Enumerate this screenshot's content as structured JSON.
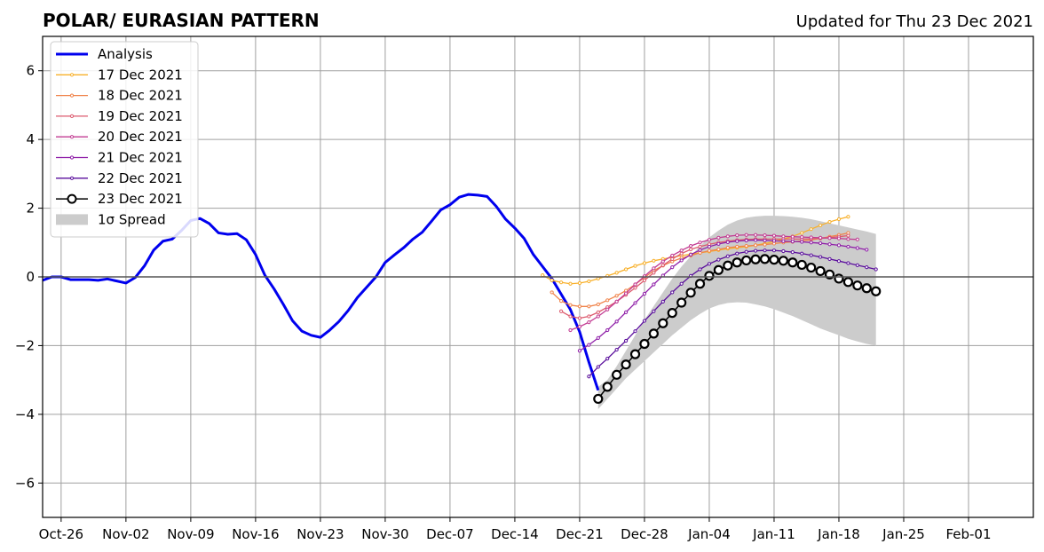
{
  "chart_data": {
    "type": "line",
    "title": "POLAR/ EURASIAN  PATTERN",
    "subtitle": "Updated for Thu 23 Dec 2021",
    "xlabel": "",
    "ylabel": "",
    "ylim": [
      -7,
      7
    ],
    "yticks": [
      -6,
      -4,
      -2,
      0,
      2,
      4,
      6
    ],
    "ytick_labels": [
      "−6",
      "−4",
      "−2",
      "0",
      "2",
      "4",
      "6"
    ],
    "xlim": [
      "2021-10-24",
      "2022-02-08"
    ],
    "xticks": [
      "2021-10-26",
      "2021-11-02",
      "2021-11-09",
      "2021-11-16",
      "2021-11-23",
      "2021-11-30",
      "2021-12-07",
      "2021-12-14",
      "2021-12-21",
      "2021-12-28",
      "2022-01-04",
      "2022-01-11",
      "2022-01-18",
      "2022-01-25",
      "2022-02-01"
    ],
    "xtick_labels": [
      "Oct-26",
      "Nov-02",
      "Nov-09",
      "Nov-16",
      "Nov-23",
      "Nov-30",
      "Dec-07",
      "Dec-14",
      "Dec-21",
      "Dec-28",
      "Jan-04",
      "Jan-11",
      "Jan-18",
      "Jan-25",
      "Feb-01"
    ],
    "grid": true,
    "legend_position": "top-left",
    "analysis": {
      "name": "Analysis",
      "color": "#0000ee",
      "start": "2021-10-24",
      "values": [
        -0.1,
        0.0,
        0.0,
        -0.08,
        -0.08,
        -0.08,
        -0.1,
        -0.06,
        -0.12,
        -0.18,
        -0.02,
        0.32,
        0.78,
        1.04,
        1.1,
        1.35,
        1.64,
        1.7,
        1.55,
        1.28,
        1.24,
        1.26,
        1.08,
        0.65,
        0.05,
        -0.35,
        -0.8,
        -1.28,
        -1.58,
        -1.7,
        -1.76,
        -1.55,
        -1.3,
        -0.98,
        -0.6,
        -0.3,
        0.0,
        0.42,
        0.64,
        0.85,
        1.1,
        1.3,
        1.62,
        1.95,
        2.1,
        2.32,
        2.4,
        2.38,
        2.34,
        2.05,
        1.68,
        1.42,
        1.12,
        0.65,
        0.3,
        -0.05,
        -0.5,
        -0.95,
        -1.6,
        -2.48,
        -3.3
      ]
    },
    "forecasts": [
      {
        "name": "17 Dec 2021",
        "color": "#f8b02a",
        "start": "2021-12-17",
        "values": [
          0.05,
          -0.1,
          -0.16,
          -0.2,
          -0.18,
          -0.13,
          -0.05,
          0.03,
          0.12,
          0.22,
          0.32,
          0.4,
          0.47,
          0.52,
          0.57,
          0.62,
          0.66,
          0.7,
          0.74,
          0.78,
          0.82,
          0.85,
          0.88,
          0.92,
          0.97,
          1.03,
          1.1,
          1.18,
          1.28,
          1.39,
          1.5,
          1.6,
          1.68,
          1.75
        ]
      },
      {
        "name": "18 Dec 2021",
        "color": "#f0834a",
        "start": "2021-12-18",
        "values": [
          -0.45,
          -0.7,
          -0.82,
          -0.86,
          -0.86,
          -0.8,
          -0.68,
          -0.55,
          -0.4,
          -0.22,
          -0.02,
          0.18,
          0.33,
          0.45,
          0.55,
          0.62,
          0.7,
          0.76,
          0.8,
          0.85,
          0.88,
          0.9,
          0.92,
          0.94,
          0.97,
          1.0,
          1.02,
          1.05,
          1.08,
          1.12,
          1.17,
          1.22,
          1.28
        ]
      },
      {
        "name": "19 Dec 2021",
        "color": "#dc5a6e",
        "start": "2021-12-19",
        "values": [
          -1.0,
          -1.15,
          -1.2,
          -1.15,
          -1.03,
          -0.88,
          -0.72,
          -0.52,
          -0.32,
          -0.1,
          0.12,
          0.34,
          0.52,
          0.68,
          0.8,
          0.88,
          0.95,
          1.0,
          1.04,
          1.07,
          1.09,
          1.1,
          1.1,
          1.1,
          1.1,
          1.1,
          1.1,
          1.11,
          1.12,
          1.14,
          1.17,
          1.2
        ]
      },
      {
        "name": "20 Dec 2021",
        "color": "#c23b92",
        "start": "2021-12-20",
        "values": [
          -1.55,
          -1.45,
          -1.32,
          -1.15,
          -0.95,
          -0.72,
          -0.48,
          -0.22,
          0.02,
          0.25,
          0.45,
          0.62,
          0.77,
          0.9,
          1.0,
          1.08,
          1.14,
          1.18,
          1.21,
          1.22,
          1.22,
          1.21,
          1.2,
          1.18,
          1.17,
          1.16,
          1.15,
          1.14,
          1.13,
          1.12,
          1.1,
          1.09
        ]
      },
      {
        "name": "21 Dec 2021",
        "color": "#8f1fa8",
        "start": "2021-12-21",
        "values": [
          -2.15,
          -1.98,
          -1.78,
          -1.55,
          -1.3,
          -1.03,
          -0.76,
          -0.49,
          -0.22,
          0.04,
          0.28,
          0.48,
          0.65,
          0.78,
          0.88,
          0.96,
          1.01,
          1.04,
          1.06,
          1.07,
          1.06,
          1.05,
          1.04,
          1.03,
          1.02,
          1.0,
          0.98,
          0.95,
          0.92,
          0.88,
          0.84,
          0.79
        ]
      },
      {
        "name": "22 Dec 2021",
        "color": "#5a0e9c",
        "start": "2021-12-22",
        "values": [
          -2.9,
          -2.62,
          -2.38,
          -2.12,
          -1.86,
          -1.58,
          -1.28,
          -1.0,
          -0.72,
          -0.45,
          -0.2,
          0.03,
          0.22,
          0.38,
          0.5,
          0.6,
          0.68,
          0.73,
          0.76,
          0.77,
          0.77,
          0.75,
          0.72,
          0.68,
          0.63,
          0.58,
          0.52,
          0.46,
          0.4,
          0.34,
          0.28,
          0.22
        ]
      },
      {
        "name": "23 Dec 2021",
        "color": "#000000",
        "start": "2021-12-23",
        "values": [
          -3.55,
          -3.2,
          -2.85,
          -2.55,
          -2.25,
          -1.95,
          -1.65,
          -1.35,
          -1.05,
          -0.75,
          -0.46,
          -0.2,
          0.03,
          0.2,
          0.33,
          0.42,
          0.48,
          0.51,
          0.52,
          0.5,
          0.47,
          0.42,
          0.35,
          0.27,
          0.17,
          0.07,
          -0.05,
          -0.15,
          -0.25,
          -0.33,
          -0.42
        ]
      }
    ],
    "spread": {
      "name": "1σ Spread",
      "color": "#cccccc",
      "start": "2021-12-23",
      "upper": [
        -3.2,
        -3.0,
        -2.6,
        -2.15,
        -1.7,
        -1.25,
        -0.85,
        -0.45,
        -0.05,
        0.3,
        0.6,
        0.9,
        1.15,
        1.35,
        1.52,
        1.64,
        1.72,
        1.76,
        1.78,
        1.78,
        1.77,
        1.75,
        1.72,
        1.68,
        1.62,
        1.56,
        1.5,
        1.44,
        1.38,
        1.32,
        1.25
      ],
      "lower": [
        -3.85,
        -3.55,
        -3.25,
        -2.95,
        -2.7,
        -2.45,
        -2.2,
        -1.95,
        -1.7,
        -1.48,
        -1.26,
        -1.08,
        -0.92,
        -0.82,
        -0.76,
        -0.74,
        -0.75,
        -0.8,
        -0.86,
        -0.94,
        -1.04,
        -1.14,
        -1.26,
        -1.38,
        -1.5,
        -1.6,
        -1.7,
        -1.8,
        -1.88,
        -1.95,
        -2.0
      ]
    }
  }
}
